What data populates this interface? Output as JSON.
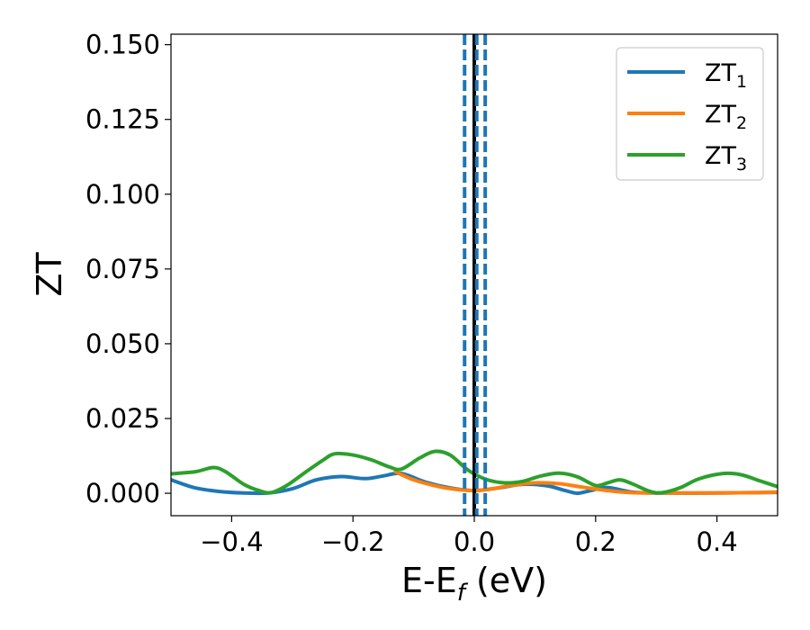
{
  "chart_data": {
    "type": "line",
    "xlabel": "E-E",
    "xlabel_sub": "f",
    "xlabel_unit": " (eV)",
    "ylabel": "ZT",
    "xlim": [
      -0.5,
      0.5
    ],
    "ylim": [
      -0.0075,
      0.1535
    ],
    "xticks": [
      -0.4,
      -0.2,
      0.0,
      0.2,
      0.4
    ],
    "xtick_labels": [
      "−0.4",
      "−0.2",
      "0.0",
      "0.2",
      "0.4"
    ],
    "yticks": [
      0.0,
      0.025,
      0.05,
      0.075,
      0.1,
      0.125,
      0.15
    ],
    "ytick_labels": [
      "0.000",
      "0.025",
      "0.050",
      "0.075",
      "0.100",
      "0.125",
      "0.150"
    ],
    "legend_position": "top-right",
    "grid": false,
    "series": [
      {
        "name": "ZT",
        "subscript": "1",
        "color": "#1f77b4",
        "points": [
          [
            -0.5,
            0.0045
          ],
          [
            -0.46,
            0.0018
          ],
          [
            -0.42,
            0.0006
          ],
          [
            -0.38,
            0.0001
          ],
          [
            -0.34,
            0.0001
          ],
          [
            -0.3,
            0.0015
          ],
          [
            -0.26,
            0.0045
          ],
          [
            -0.22,
            0.0056
          ],
          [
            -0.18,
            0.0049
          ],
          [
            -0.15,
            0.0058
          ],
          [
            -0.12,
            0.0066
          ],
          [
            -0.08,
            0.0037
          ],
          [
            -0.04,
            0.0018
          ],
          [
            0.0,
            0.0009
          ],
          [
            0.04,
            0.0018
          ],
          [
            0.08,
            0.003
          ],
          [
            0.12,
            0.0025
          ],
          [
            0.15,
            0.0009
          ],
          [
            0.17,
            0.0
          ],
          [
            0.19,
            0.0008
          ],
          [
            0.22,
            0.0019
          ],
          [
            0.26,
            0.0004
          ],
          [
            0.3,
            0.0001
          ],
          [
            0.4,
            0.0001
          ],
          [
            0.5,
            0.0003
          ]
        ]
      },
      {
        "name": "ZT",
        "subscript": "2",
        "color": "#ff7f0e",
        "points": [
          [
            -0.13,
            0.0072
          ],
          [
            -0.1,
            0.0045
          ],
          [
            -0.06,
            0.0023
          ],
          [
            -0.03,
            0.0013
          ],
          [
            0.0,
            0.0009
          ],
          [
            0.03,
            0.0015
          ],
          [
            0.06,
            0.0026
          ],
          [
            0.1,
            0.0035
          ],
          [
            0.14,
            0.0032
          ],
          [
            0.18,
            0.002
          ],
          [
            0.22,
            0.0009
          ],
          [
            0.26,
            0.0002
          ],
          [
            0.32,
            0.0001
          ],
          [
            0.4,
            0.0001
          ],
          [
            0.46,
            0.0002
          ],
          [
            0.5,
            0.0004
          ]
        ]
      },
      {
        "name": "ZT",
        "subscript": "3",
        "color": "#2ca02c",
        "points": [
          [
            -0.5,
            0.0065
          ],
          [
            -0.46,
            0.0072
          ],
          [
            -0.43,
            0.0086
          ],
          [
            -0.41,
            0.0072
          ],
          [
            -0.38,
            0.003
          ],
          [
            -0.355,
            0.0009
          ],
          [
            -0.335,
            0.0002
          ],
          [
            -0.31,
            0.0025
          ],
          [
            -0.28,
            0.0068
          ],
          [
            -0.25,
            0.011
          ],
          [
            -0.23,
            0.0132
          ],
          [
            -0.2,
            0.0128
          ],
          [
            -0.17,
            0.0112
          ],
          [
            -0.14,
            0.0088
          ],
          [
            -0.12,
            0.0081
          ],
          [
            -0.09,
            0.0118
          ],
          [
            -0.065,
            0.014
          ],
          [
            -0.04,
            0.0128
          ],
          [
            -0.01,
            0.0077
          ],
          [
            0.02,
            0.0046
          ],
          [
            0.05,
            0.0035
          ],
          [
            0.08,
            0.004
          ],
          [
            0.11,
            0.0058
          ],
          [
            0.14,
            0.0067
          ],
          [
            0.17,
            0.0055
          ],
          [
            0.2,
            0.0026
          ],
          [
            0.22,
            0.0035
          ],
          [
            0.24,
            0.0045
          ],
          [
            0.26,
            0.0032
          ],
          [
            0.29,
            0.0006
          ],
          [
            0.31,
            0.0002
          ],
          [
            0.34,
            0.0019
          ],
          [
            0.37,
            0.0048
          ],
          [
            0.41,
            0.0066
          ],
          [
            0.44,
            0.0062
          ],
          [
            0.47,
            0.0042
          ],
          [
            0.5,
            0.0022
          ]
        ]
      }
    ],
    "vlines": [
      {
        "x": 0.0,
        "color": "#000000",
        "style": "solid"
      },
      {
        "x": -0.016,
        "color": "#1f77b4",
        "style": "dashed"
      },
      {
        "x": 0.004,
        "color": "#1f77b4",
        "style": "dashed"
      },
      {
        "x": 0.018,
        "color": "#1f77b4",
        "style": "dashed"
      }
    ]
  }
}
